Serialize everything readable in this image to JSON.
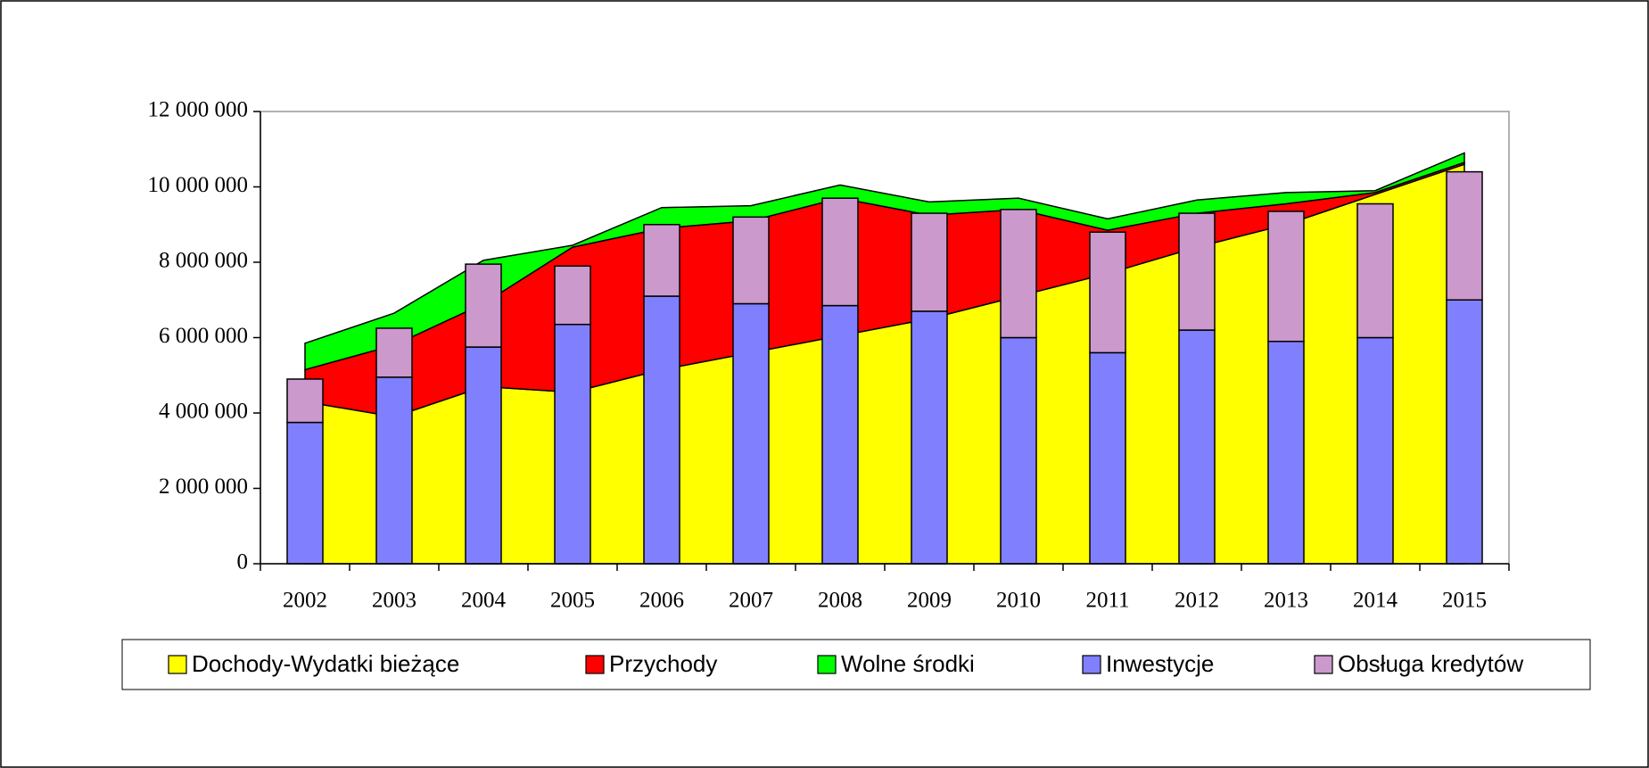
{
  "chart_data": {
    "type": "area_bar",
    "categories": [
      "2002",
      "2003",
      "2004",
      "2005",
      "2006",
      "2007",
      "2008",
      "2009",
      "2010",
      "2011",
      "2012",
      "2013",
      "2014",
      "2015"
    ],
    "series": [
      {
        "name": "Dochody-Wydatki bieżące",
        "color": "#ffff00",
        "type": "area",
        "values": [
          4300000,
          3900000,
          4700000,
          4550000,
          5150000,
          5600000,
          6050000,
          6500000,
          7100000,
          7700000,
          8400000,
          9000000,
          9800000,
          10600000
        ]
      },
      {
        "name": "Przychody",
        "color": "#ff0000",
        "type": "area",
        "values": [
          850000,
          1900000,
          2200000,
          3850000,
          3750000,
          3500000,
          3650000,
          2750000,
          2300000,
          1150000,
          900000,
          550000,
          50000,
          50000
        ]
      },
      {
        "name": "Wolne środki",
        "color": "#00ff00",
        "type": "area",
        "values": [
          700000,
          850000,
          1150000,
          50000,
          550000,
          400000,
          350000,
          350000,
          300000,
          300000,
          350000,
          300000,
          50000,
          250000
        ]
      },
      {
        "name": "Inwestycje",
        "color": "#8080ff",
        "type": "bar",
        "values": [
          3750000,
          4950000,
          5750000,
          6350000,
          7100000,
          6900000,
          6850000,
          6700000,
          6000000,
          5600000,
          6200000,
          5900000,
          6000000,
          7000000
        ]
      },
      {
        "name": "Obsługa kredytów",
        "color": "#cc99cc",
        "type": "bar",
        "values": [
          1150000,
          1300000,
          2200000,
          1550000,
          1900000,
          2300000,
          2850000,
          2600000,
          3400000,
          3200000,
          3100000,
          3450000,
          3550000,
          3400000
        ]
      }
    ],
    "ylim": [
      0,
      12000000
    ],
    "yticks": [
      {
        "value": 0,
        "label": "0"
      },
      {
        "value": 2000000,
        "label": "2 000 000"
      },
      {
        "value": 4000000,
        "label": "4 000 000"
      },
      {
        "value": 6000000,
        "label": "6 000 000"
      },
      {
        "value": 8000000,
        "label": "8 000 000"
      },
      {
        "value": 10000000,
        "label": "10 000 000"
      },
      {
        "value": 12000000,
        "label": "12 000 000"
      }
    ],
    "grid": false,
    "legend": "bottom"
  }
}
